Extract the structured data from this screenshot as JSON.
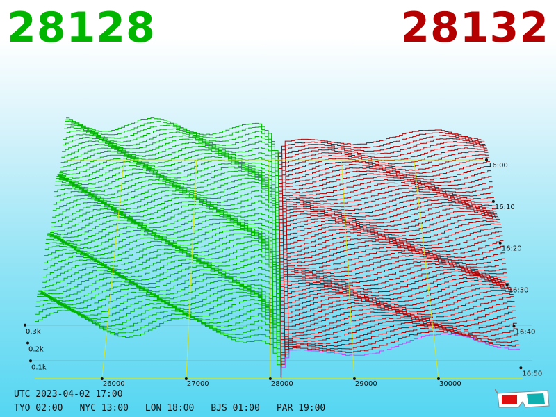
{
  "header": {
    "bid_price": "28128",
    "ask_price": "28132"
  },
  "colors": {
    "bid": "#00b400",
    "ask": "#b40000",
    "axis": "#e8e800",
    "latest_ask": "#cc44ff"
  },
  "footer": {
    "utc_line": "UTC 2023-04-02 17:00",
    "zones": [
      "TYO 02:00",
      "NYC 13:00",
      "LON 18:00",
      "BJS 01:00",
      "PAR 19:00"
    ]
  },
  "icons": {
    "stereo_toggle": "3d-glasses-icon"
  },
  "chart_data": {
    "type": "area",
    "subtype": "3d-depth-chart",
    "x_tick_labels": [
      "26000",
      "27000",
      "28000",
      "29000",
      "30000"
    ],
    "x_ticks": [
      26000,
      27000,
      28000,
      29000,
      30000
    ],
    "xlim": [
      25200,
      31000
    ],
    "z_tick_labels": [
      "0.1k",
      "0.2k",
      "0.3k"
    ],
    "z_ticks": [
      100,
      200,
      300
    ],
    "time_tick_labels": [
      "16:00",
      "16:10",
      "16:20",
      "16:30",
      "16:40",
      "16:50"
    ],
    "mid_price": 28130,
    "bid_color": "#00b400",
    "ask_color": "#b40000",
    "series": [
      {
        "name": "",
        "values": []
      },
      {
        "name": "",
        "values": []
      }
    ],
    "bid_depth_profile": {
      "x": [
        25200,
        25900,
        26600,
        27400,
        27850,
        28000,
        28128
      ],
      "cumulative": [
        300,
        290,
        270,
        255,
        240,
        180,
        0
      ]
    },
    "ask_depth_profile": {
      "x": [
        28132,
        28250,
        28800,
        29500,
        30000,
        30400,
        31000
      ],
      "cumulative": [
        0,
        120,
        160,
        175,
        190,
        205,
        210
      ]
    }
  }
}
